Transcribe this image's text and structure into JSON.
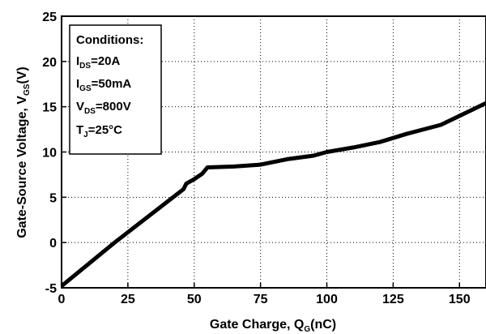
{
  "chart_data": {
    "type": "line",
    "x_ticks": [
      "0",
      "25",
      "50",
      "75",
      "100",
      "125",
      "150"
    ],
    "y_ticks": [
      "-5",
      "0",
      "5",
      "10",
      "15",
      "20",
      "25"
    ],
    "xlim": [
      0,
      160
    ],
    "ylim": [
      -5,
      25
    ],
    "grid": "dotted",
    "xlabel": {
      "main": "Gate Charge, Q",
      "sub": "G",
      "unit": "(nC)"
    },
    "ylabel": {
      "main": "Gate-Source Voltage, V",
      "sub": "GS",
      "unit": "(V)"
    },
    "series": [
      {
        "color": "#000000",
        "x": [
          0,
          20,
          46,
          47,
          50,
          53,
          55,
          65,
          75,
          85,
          95,
          100,
          110,
          120,
          130,
          143,
          160
        ],
        "y": [
          -4.8,
          0,
          5.9,
          6.5,
          7.0,
          7.6,
          8.3,
          8.4,
          8.6,
          9.2,
          9.6,
          10.0,
          10.5,
          11.1,
          12.0,
          13.0,
          15.4
        ]
      }
    ],
    "legend": {
      "position": "top-left",
      "title": "Conditions:",
      "lines": [
        {
          "main": "I",
          "sub": "DS",
          "rest": "=20A"
        },
        {
          "main": "I",
          "sub": "GS",
          "rest": "=50mA"
        },
        {
          "main": "V",
          "sub": "DS",
          "rest": "=800V"
        },
        {
          "main": "T",
          "sub": "J",
          "rest": "=25°C"
        }
      ]
    }
  }
}
